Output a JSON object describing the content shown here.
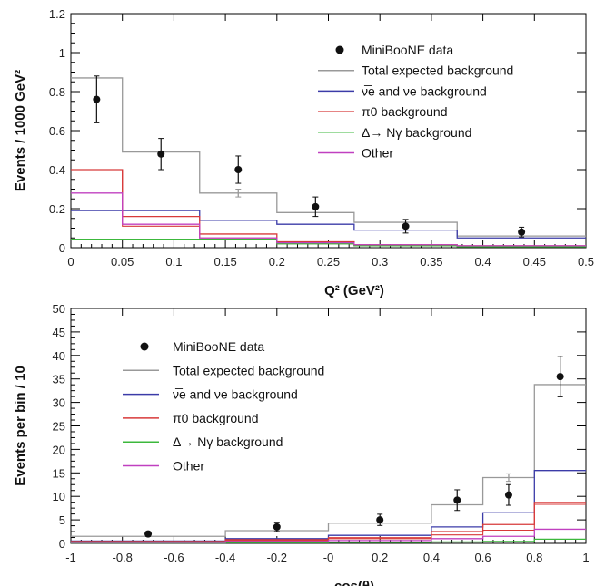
{
  "chart_data": [
    {
      "type": "histogram",
      "xlabel": "Q² (GeV²)",
      "ylabel": "Events / 1000 GeV²",
      "xlim": [
        0,
        0.5
      ],
      "ylim": [
        0,
        1.2
      ],
      "x_ticks": [
        "0",
        "0.05",
        "0.1",
        "0.15",
        "0.2",
        "0.25",
        "0.3",
        "0.35",
        "0.4",
        "0.45",
        "0.5"
      ],
      "y_ticks": [
        "0",
        "0.2",
        "0.4",
        "0.6",
        "0.8",
        "1",
        "1.2"
      ],
      "bin_edges": [
        0,
        0.05,
        0.125,
        0.2,
        0.275,
        0.375,
        0.5
      ],
      "legend_position": "top-right",
      "series": [
        {
          "name": "MiniBooNE data",
          "kind": "points",
          "color": "#111111",
          "x": [
            0.025,
            0.0875,
            0.1625,
            0.2375,
            0.325,
            0.4375
          ],
          "y": [
            0.76,
            0.48,
            0.4,
            0.21,
            0.11,
            0.08
          ],
          "yerr": [
            0.12,
            0.08,
            0.07,
            0.05,
            0.035,
            0.025
          ]
        },
        {
          "name": "Total expected background",
          "kind": "step",
          "color": "#999999",
          "values": [
            0.87,
            0.49,
            0.28,
            0.18,
            0.13,
            0.06
          ],
          "marker": {
            "x": 0.1625,
            "y": 0.28,
            "yerr": 0.02
          }
        },
        {
          "name": "ν̅e and νe background",
          "kind": "step",
          "color": "#3b3ba8",
          "values": [
            0.19,
            0.19,
            0.14,
            0.12,
            0.09,
            0.05
          ]
        },
        {
          "name": "π0 background",
          "kind": "step",
          "color": "#d83a3a",
          "values": [
            0.4,
            0.16,
            0.07,
            0.03,
            0.015,
            0.01
          ],
          "values2": [
            0.4,
            0.11,
            0.05,
            0.02,
            0.01,
            0.005
          ]
        },
        {
          "name": "Δ→ Nγ background",
          "kind": "step",
          "color": "#3cb83c",
          "values": [
            0.04,
            0.04,
            0.04,
            0.02,
            0.01,
            0.005
          ]
        },
        {
          "name": "Other",
          "kind": "step",
          "color": "#c040c0",
          "values": [
            0.28,
            0.12,
            0.05,
            0.025,
            0.015,
            0.01
          ]
        }
      ]
    },
    {
      "type": "histogram",
      "xlabel": "cos(θ)",
      "ylabel": "Events per bin / 10",
      "xlim": [
        -1,
        1
      ],
      "ylim": [
        0,
        50
      ],
      "x_ticks": [
        "-1",
        "-0.8",
        "-0.6",
        "-0.4",
        "-0.2",
        "-0",
        "0.2",
        "0.4",
        "0.6",
        "0.8",
        "1"
      ],
      "y_ticks": [
        "0",
        "5",
        "10",
        "15",
        "20",
        "25",
        "30",
        "35",
        "40",
        "45",
        "50"
      ],
      "bin_edges": [
        -1,
        -0.4,
        0,
        0.4,
        0.6,
        0.8,
        1
      ],
      "legend_position": "top-left",
      "series": [
        {
          "name": "MiniBooNE data",
          "kind": "points",
          "color": "#111111",
          "x": [
            -0.7,
            -0.2,
            0.2,
            0.5,
            0.7,
            0.9
          ],
          "y": [
            2.0,
            3.5,
            5.0,
            9.2,
            10.3,
            35.5
          ],
          "yerr": [
            0.5,
            1.0,
            1.2,
            2.2,
            2.2,
            4.3
          ]
        },
        {
          "name": "Total expected background",
          "kind": "step",
          "color": "#999999",
          "values": [
            1.5,
            2.7,
            4.3,
            8.2,
            14.0,
            33.8
          ],
          "marker": {
            "x": 0.7,
            "y": 14.0,
            "yerr": 0.8
          }
        },
        {
          "name": "ν̅e and νe background",
          "kind": "step",
          "color": "#3b3ba8",
          "values": [
            0.5,
            1.0,
            1.7,
            3.5,
            6.5,
            15.5
          ]
        },
        {
          "name": "π0 background",
          "kind": "step",
          "color": "#d83a3a",
          "values": [
            0.4,
            0.8,
            1.2,
            2.5,
            4.0,
            8.7
          ],
          "values2": [
            0.3,
            0.6,
            1.0,
            1.8,
            2.8,
            8.3
          ]
        },
        {
          "name": "Δ→ Nγ background",
          "kind": "step",
          "color": "#3cb83c",
          "values": [
            0.1,
            0.15,
            0.2,
            0.3,
            0.4,
            0.9
          ]
        },
        {
          "name": "Other",
          "kind": "step",
          "color": "#c040c0",
          "values": [
            0.2,
            0.4,
            0.6,
            1.0,
            1.5,
            3.0
          ]
        }
      ]
    }
  ]
}
